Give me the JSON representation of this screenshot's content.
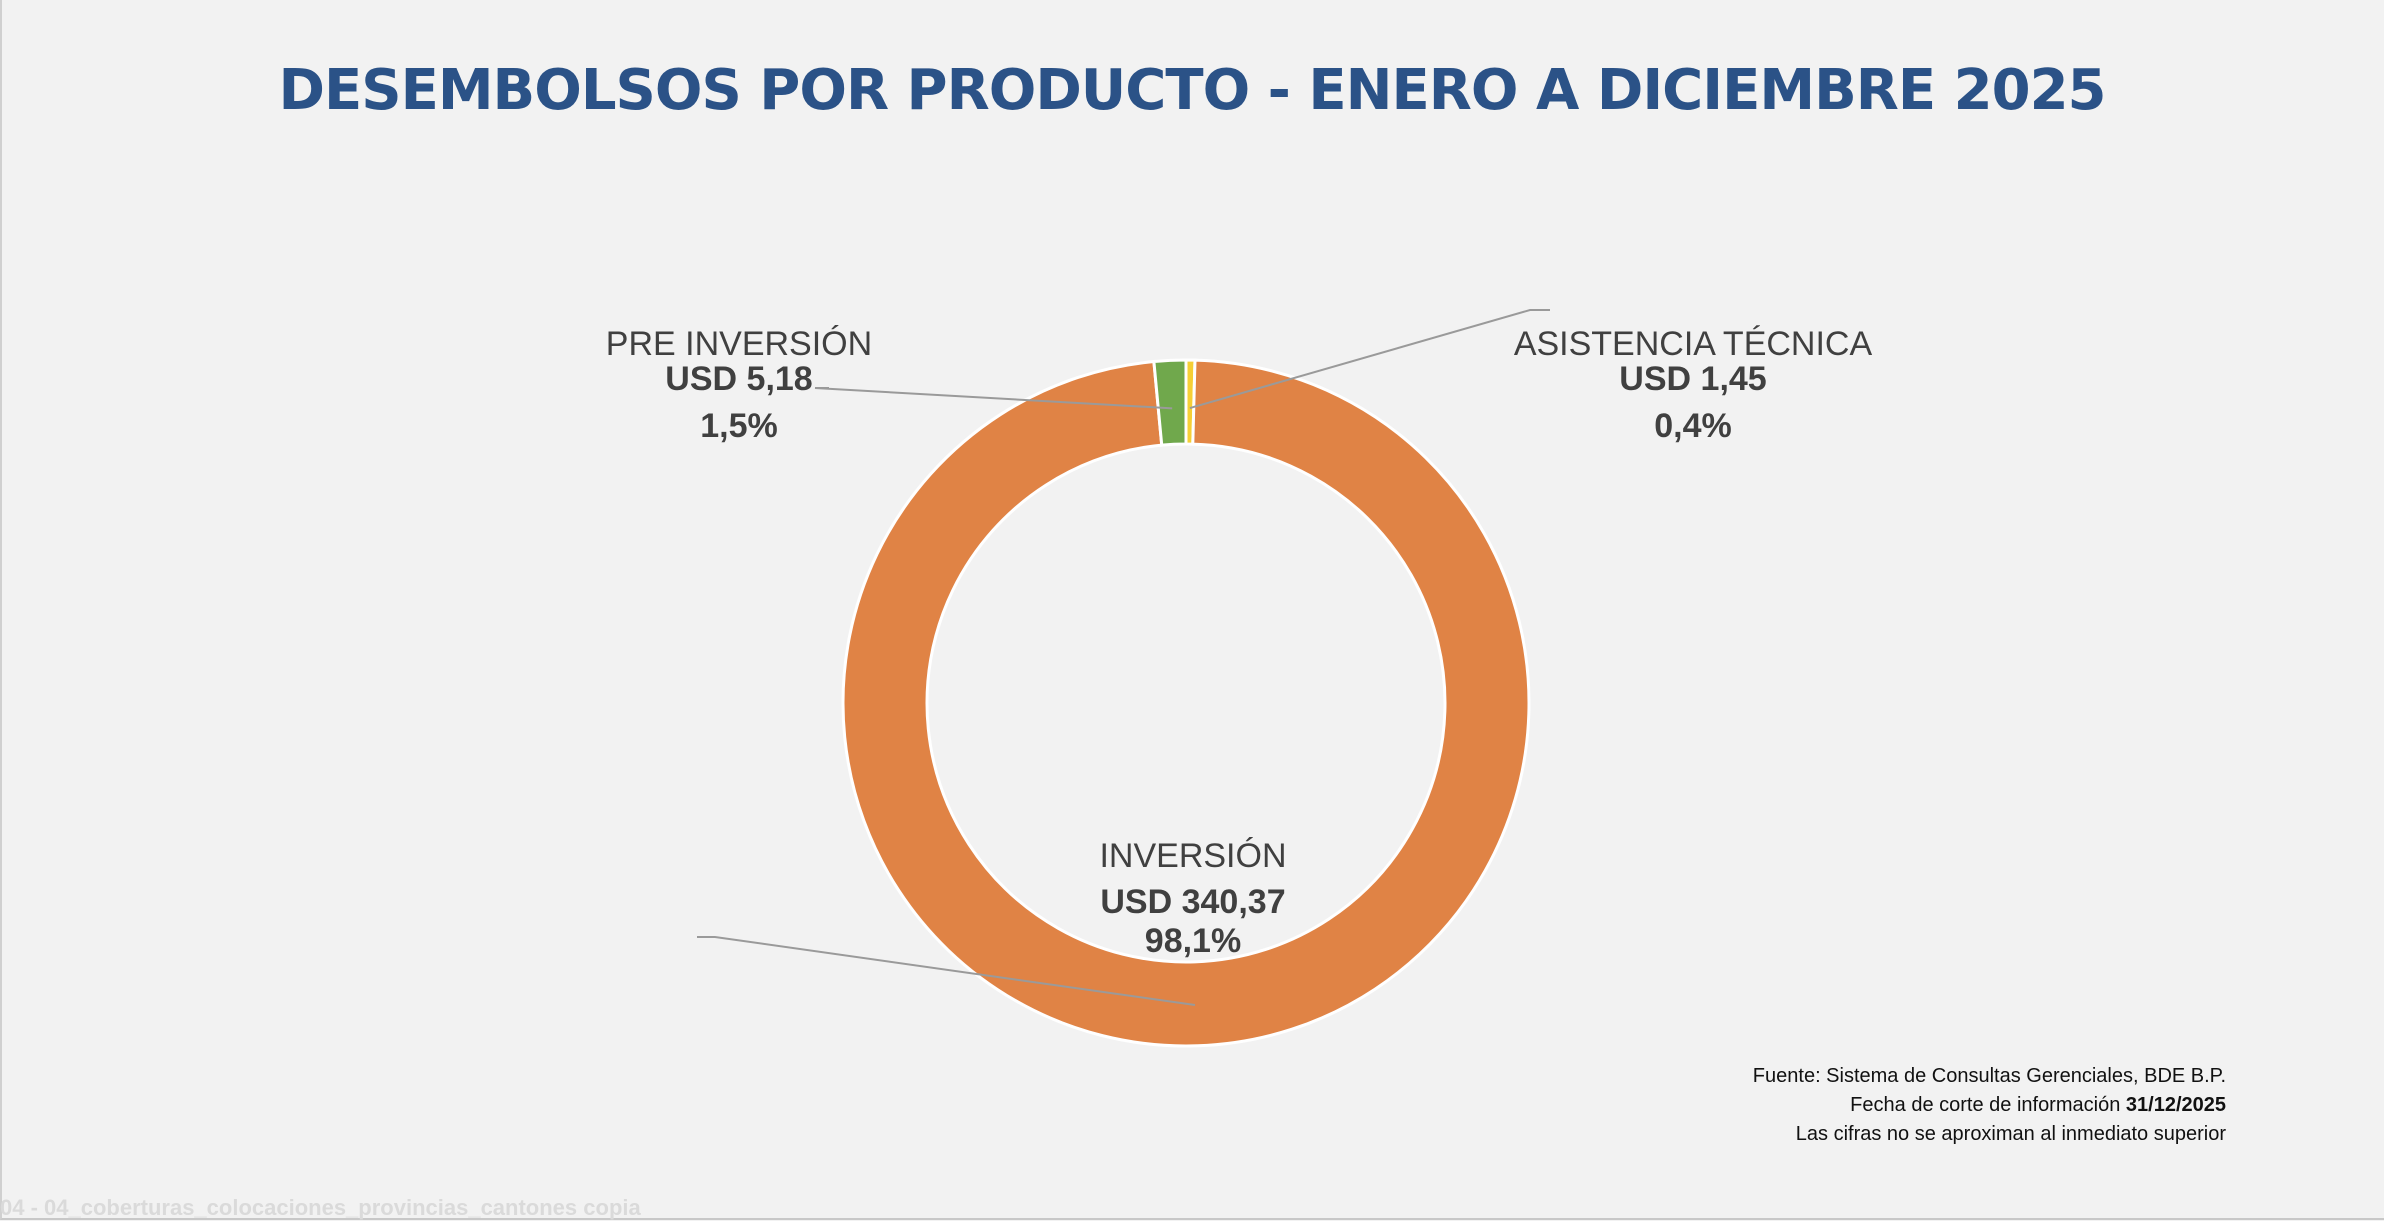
{
  "chart_data": {
    "type": "pie",
    "title": "DESEMBOLSOS POR PRODUCTO - ENERO A DICIEMBRE 2025",
    "categories": [
      "INVERSIÓN",
      "PRE INVERSIÓN",
      "ASISTENCIA TÉCNICA"
    ],
    "values": [
      340.37,
      5.18,
      1.45
    ],
    "value_labels": [
      "USD 340,37",
      "USD 5,18",
      "USD 1,45"
    ],
    "percent_labels": [
      "98,1%",
      "1,5%",
      "0,4%"
    ],
    "colors": [
      "#e08345",
      "#70a84c",
      "#f5cf36"
    ],
    "donut": true
  },
  "footer": {
    "source": "Fuente: Sistema de Consultas Gerenciales, BDE B.P.",
    "date_prefix": "Fecha de corte de información",
    "date_value": "31/12/2025",
    "note": "Las cifras no se aproximan al inmediato superior"
  },
  "watermark": "04 - 04_coberturas_colocaciones_provincias_cantones copia"
}
